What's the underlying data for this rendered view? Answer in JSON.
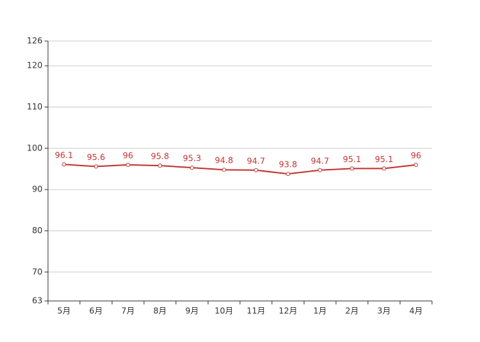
{
  "chart_data": {
    "type": "line",
    "categories": [
      "5月",
      "6月",
      "7月",
      "8月",
      "9月",
      "10月",
      "11月",
      "12月",
      "1月",
      "2月",
      "3月",
      "4月"
    ],
    "values": [
      96.1,
      95.6,
      96,
      95.8,
      95.3,
      94.8,
      94.7,
      93.8,
      94.7,
      95.1,
      95.1,
      96
    ],
    "color": "#c23531",
    "ylim": [
      63,
      126
    ],
    "yticks": [
      63,
      70,
      80,
      90,
      100,
      110,
      120,
      126
    ],
    "grid": true
  }
}
